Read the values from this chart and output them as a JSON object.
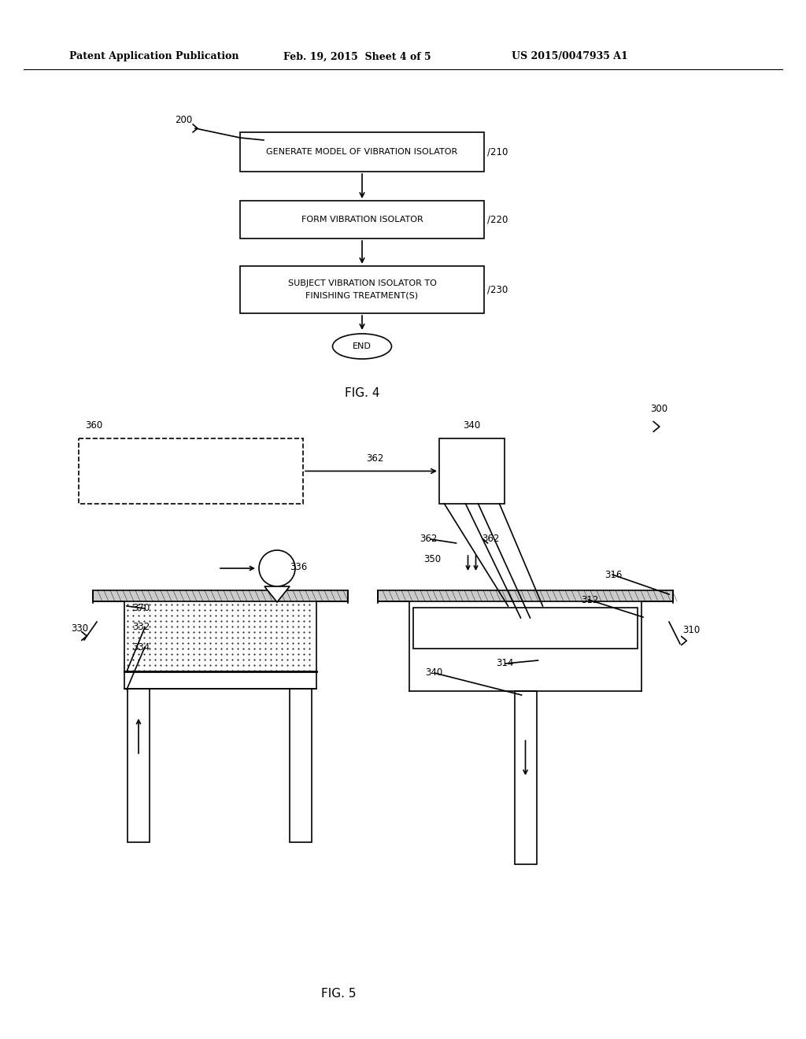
{
  "bg_color": "#ffffff",
  "header_left": "Patent Application Publication",
  "header_mid": "Feb. 19, 2015  Sheet 4 of 5",
  "header_right": "US 2015/0047935 A1",
  "fig4_label": "FIG. 4",
  "fig5_label": "FIG. 5",
  "box210_text": "GENERATE MODEL OF VIBRATION ISOLATOR",
  "box220_text": "FORM VIBRATION ISOLATOR",
  "box230_line1": "SUBJECT VIBRATION ISOLATOR TO",
  "box230_line2": "FINISHING TREATMENT(S)",
  "end_text": "END",
  "lbl_200": "200",
  "lbl_210": "210",
  "lbl_220": "220",
  "lbl_230": "230",
  "lbl_300": "300",
  "lbl_310": "310",
  "lbl_312": "312",
  "lbl_314": "314",
  "lbl_316": "316",
  "lbl_330": "330",
  "lbl_332": "332",
  "lbl_334": "334",
  "lbl_336": "336",
  "lbl_340": "340",
  "lbl_340b": "340",
  "lbl_350": "350",
  "lbl_360": "360",
  "lbl_362a": "362",
  "lbl_362b": "362",
  "lbl_362c": "362",
  "lbl_370": "370"
}
